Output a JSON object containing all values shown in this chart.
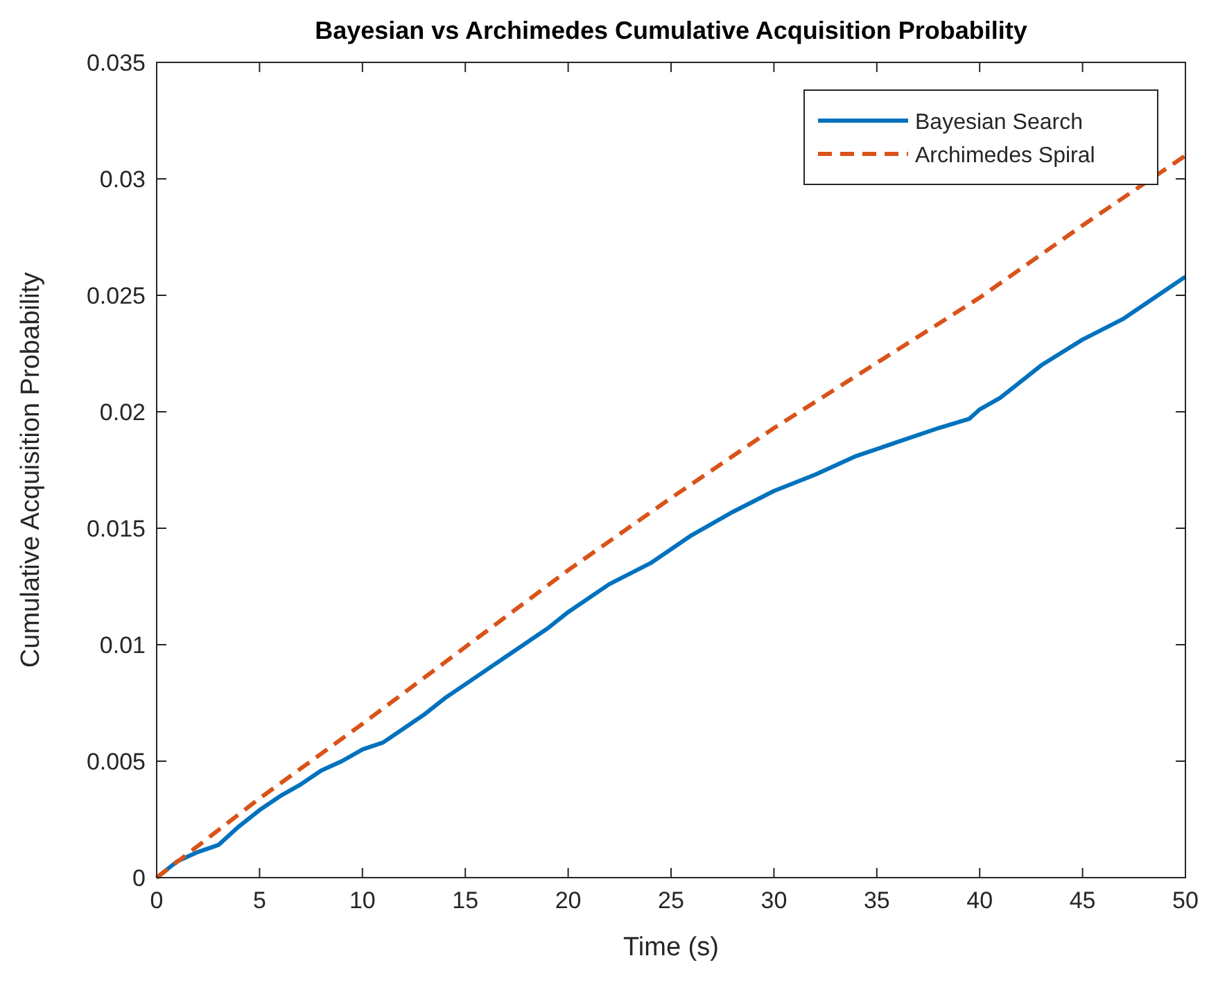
{
  "chart_data": {
    "type": "line",
    "title": "Bayesian vs Archimedes Cumulative Acquisition Probability",
    "xlabel": "Time (s)",
    "ylabel": "Cumulative Acquisition Probability",
    "xlim": [
      0,
      50
    ],
    "ylim": [
      0,
      0.035
    ],
    "xticks": [
      0,
      5,
      10,
      15,
      20,
      25,
      30,
      35,
      40,
      45,
      50
    ],
    "yticks": [
      0,
      0.005,
      0.01,
      0.015,
      0.02,
      0.025,
      0.03,
      0.035
    ],
    "legend": "top right",
    "grid": false,
    "series": [
      {
        "name": "Bayesian Search",
        "color": "#0072bd",
        "line_style": "solid",
        "x": [
          0,
          1,
          2,
          3,
          4,
          5,
          6,
          7,
          8,
          9,
          10,
          11,
          12,
          13,
          14,
          15,
          17,
          19,
          20,
          22,
          24,
          26,
          28,
          30,
          32,
          34,
          36,
          38,
          39.5,
          40,
          41,
          43,
          45,
          47,
          49,
          50
        ],
        "values": [
          0,
          0.0007,
          0.0011,
          0.0014,
          0.0022,
          0.0029,
          0.0035,
          0.004,
          0.0046,
          0.005,
          0.0055,
          0.0058,
          0.0064,
          0.007,
          0.0077,
          0.0083,
          0.0095,
          0.0107,
          0.0114,
          0.0126,
          0.0135,
          0.0147,
          0.0157,
          0.0166,
          0.0173,
          0.0181,
          0.0187,
          0.0193,
          0.0197,
          0.0201,
          0.0206,
          0.022,
          0.0231,
          0.024,
          0.0252,
          0.0258
        ]
      },
      {
        "name": "Archimedes Spiral",
        "color": "#d95319",
        "line_style": "dashed",
        "x": [
          0,
          5,
          10,
          15,
          20,
          25,
          30,
          35,
          40,
          45,
          50
        ],
        "values": [
          0,
          0.0034,
          0.0066,
          0.0099,
          0.0132,
          0.0163,
          0.0193,
          0.0221,
          0.0249,
          0.028,
          0.031
        ]
      }
    ]
  }
}
